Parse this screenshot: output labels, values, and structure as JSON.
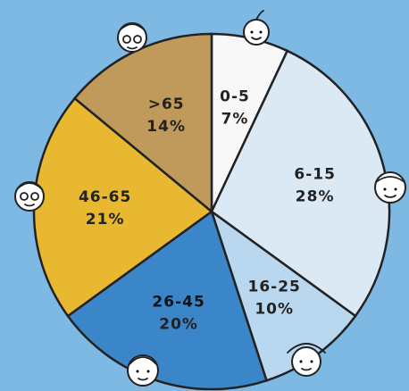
{
  "chart_data": {
    "type": "pie",
    "categories": [
      "0-5",
      "6-15",
      "16-25",
      "26-45",
      "46-65",
      ">65"
    ],
    "values": [
      7,
      28,
      10,
      20,
      21,
      14
    ],
    "value_labels": [
      "7%",
      "28%",
      "10%",
      "20%",
      "21%",
      "14%"
    ],
    "colors": [
      "#f8f8f8",
      "#dbe9f5",
      "#b9d8ef",
      "#3a86c8",
      "#e8b830",
      "#bf9a5a"
    ]
  }
}
